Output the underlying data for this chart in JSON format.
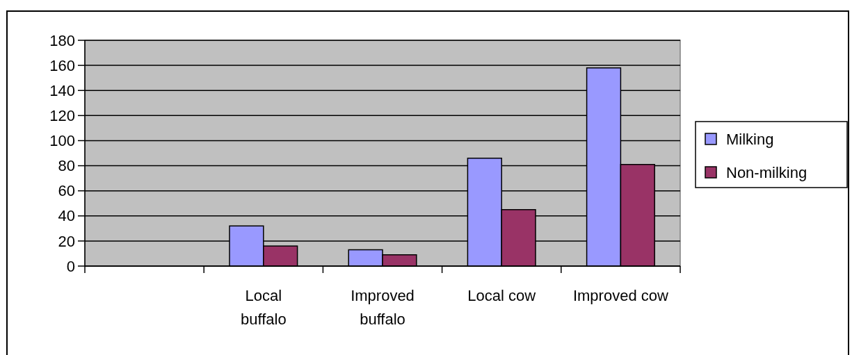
{
  "chart_data": {
    "type": "bar",
    "categories": [
      null,
      "Local buffalo",
      "Improved buffalo",
      "Local cow",
      "Improved cow"
    ],
    "series": [
      {
        "name": "Milking",
        "color": "#9999ff",
        "values": [
          null,
          32,
          13,
          86,
          158
        ]
      },
      {
        "name": "Non-milking",
        "color": "#993366",
        "values": [
          null,
          16,
          9,
          45,
          81
        ]
      }
    ],
    "ylim": [
      0,
      180
    ],
    "yticks": [
      0,
      20,
      40,
      60,
      80,
      100,
      120,
      140,
      160,
      180
    ],
    "grid": "y",
    "legend": "right"
  }
}
